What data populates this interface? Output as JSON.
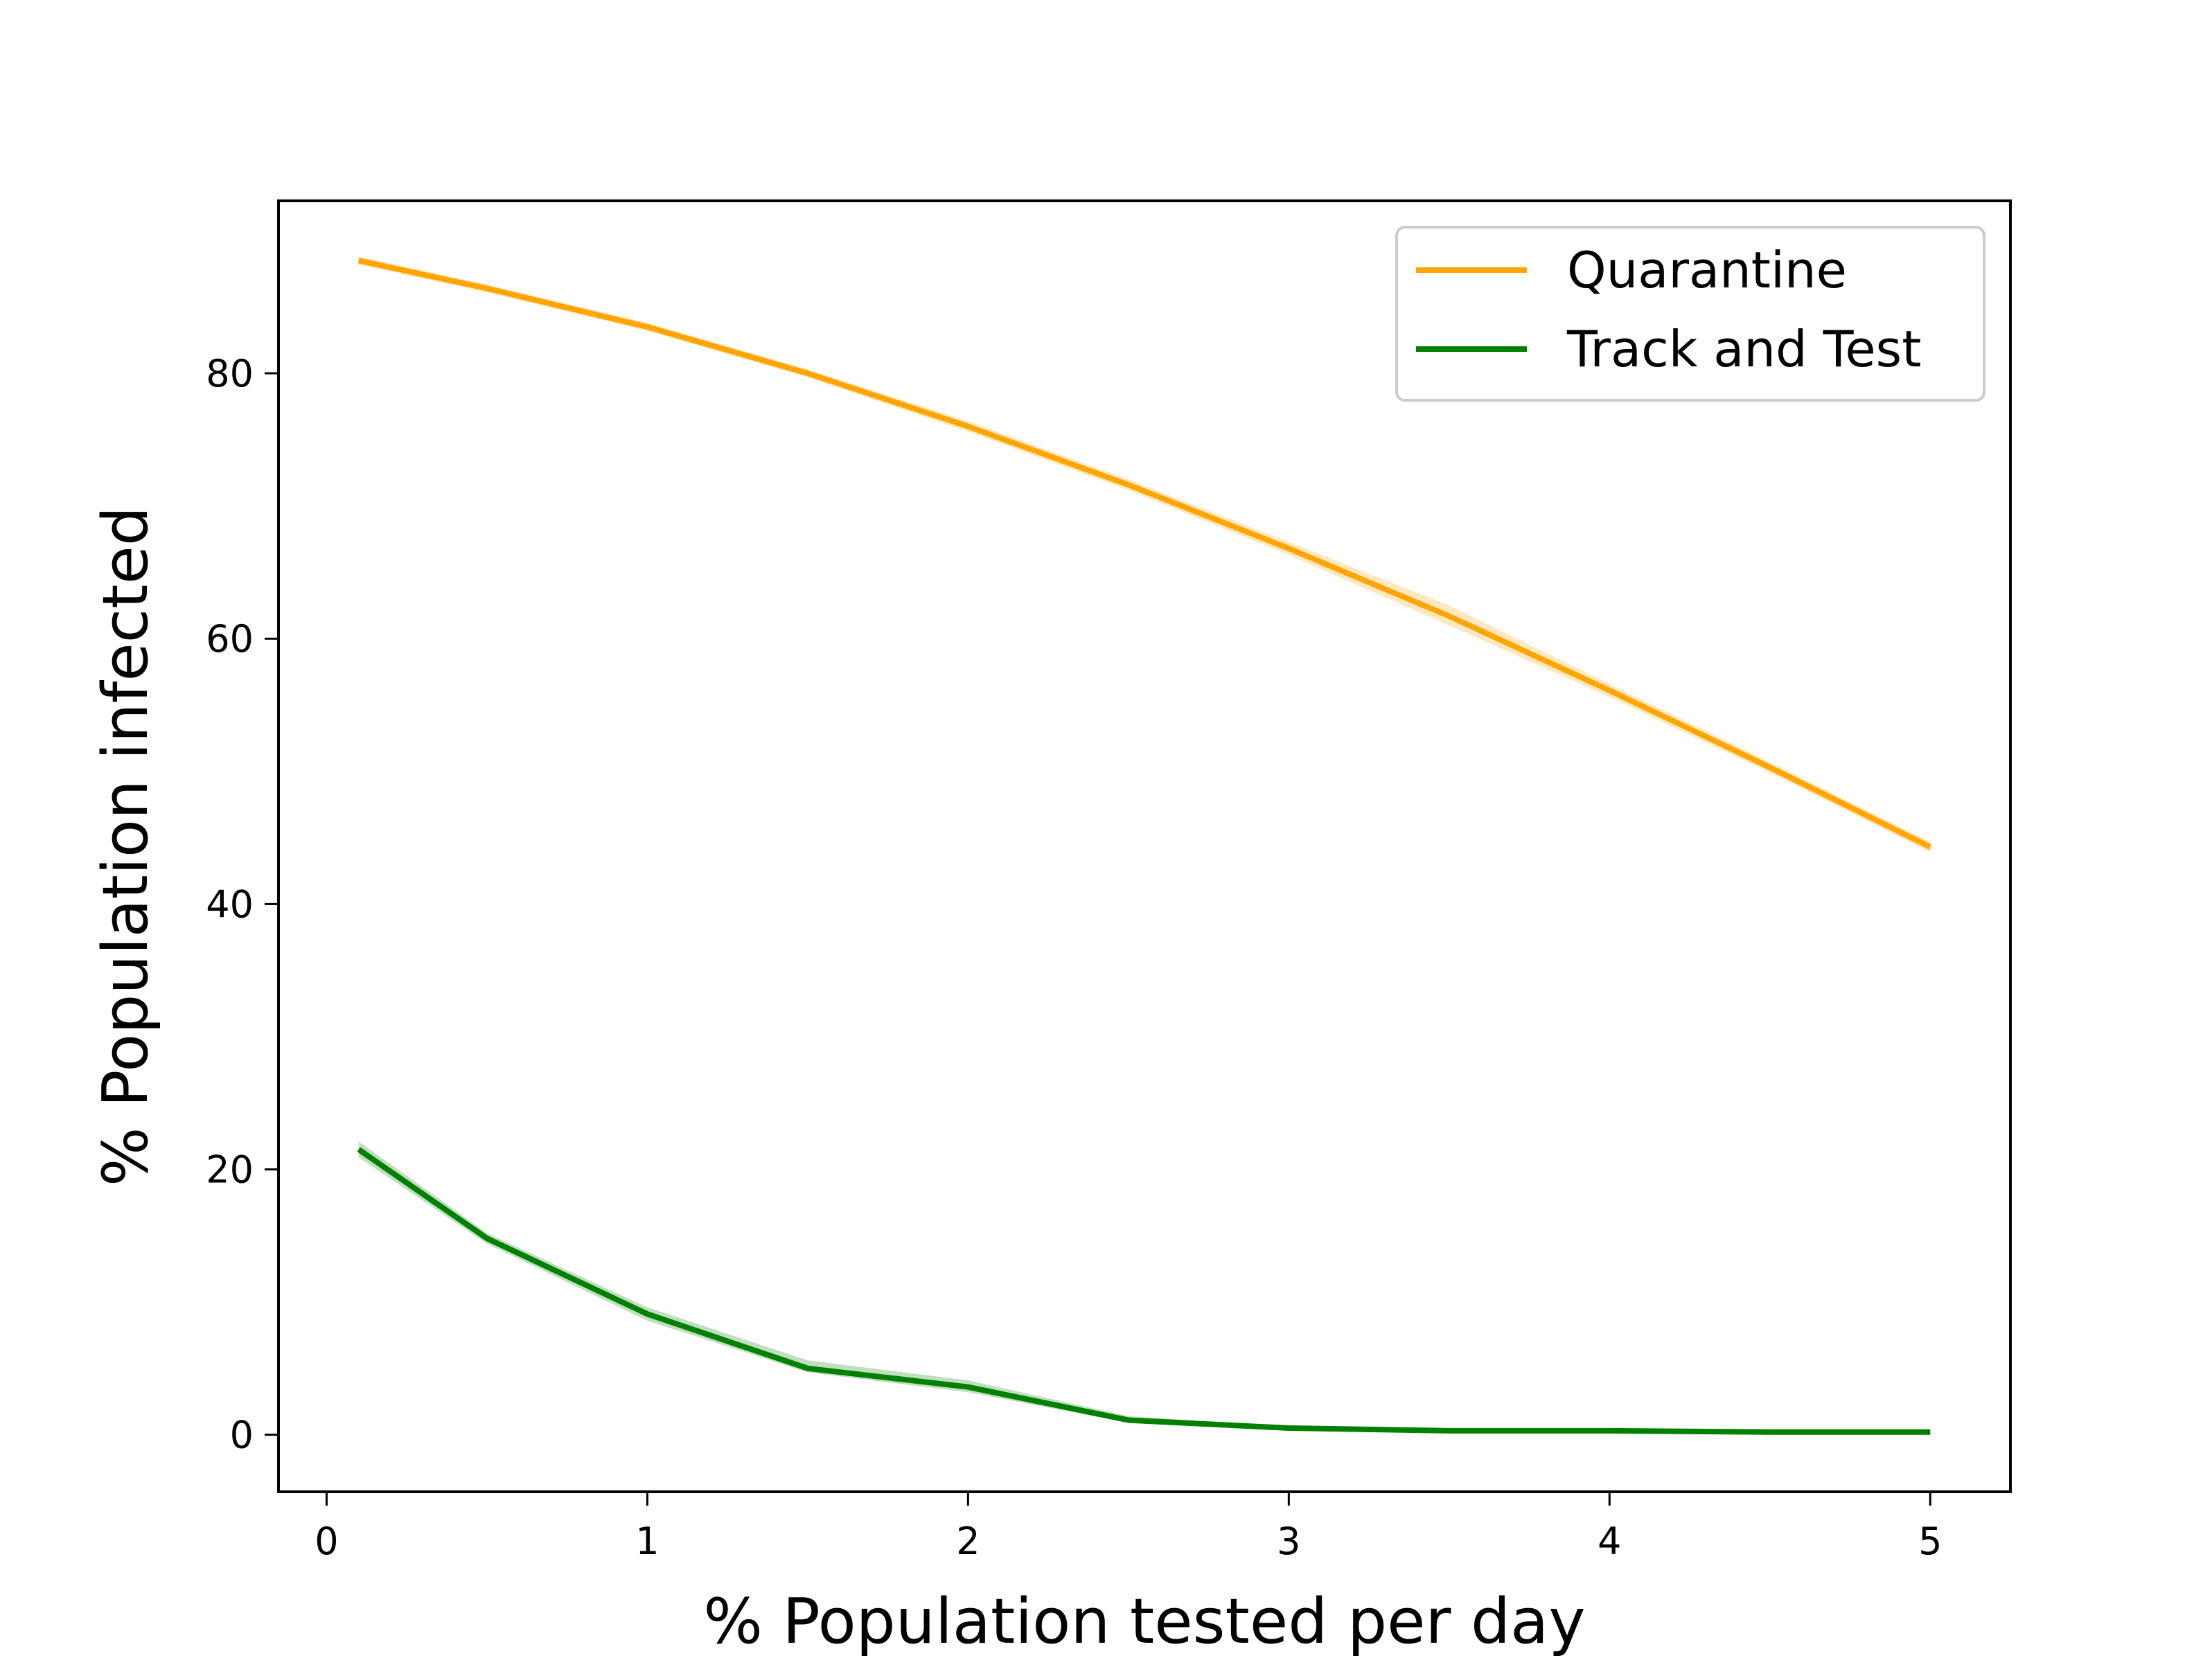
{
  "chart_data": {
    "type": "line",
    "title": "",
    "xlabel": "% Population tested per day",
    "ylabel": "% Population infected",
    "xlim": [
      -0.15,
      5.25
    ],
    "ylim": [
      -4.3,
      93
    ],
    "xticks": [
      0,
      1,
      2,
      3,
      4,
      5
    ],
    "yticks": [
      0,
      20,
      40,
      60,
      80
    ],
    "grid": false,
    "legend_position": "top-right",
    "series": [
      {
        "name": "Quarantine",
        "color": "#ffa500",
        "x": [
          0.1,
          0.5,
          1,
          1.5,
          2,
          2.5,
          3,
          3.5,
          4,
          4.5,
          5
        ],
        "y": [
          88.5,
          86.4,
          83.5,
          80.0,
          76.0,
          71.6,
          66.8,
          61.7,
          56.1,
          50.3,
          44.3
        ],
        "y_lower": [
          88.2,
          86.1,
          83.2,
          79.7,
          75.6,
          71.2,
          66.3,
          61.0,
          55.6,
          49.9,
          43.9
        ],
        "y_upper": [
          88.8,
          86.7,
          83.8,
          80.3,
          76.4,
          72.0,
          67.3,
          62.5,
          56.6,
          50.7,
          44.7
        ]
      },
      {
        "name": "Track and Test",
        "color": "#008000",
        "x": [
          0.1,
          0.5,
          1,
          1.5,
          2,
          2.5,
          3,
          3.5,
          4,
          4.5,
          5
        ],
        "y": [
          21.5,
          14.8,
          9.1,
          5.0,
          3.6,
          1.1,
          0.5,
          0.3,
          0.3,
          0.2,
          0.2
        ],
        "y_lower": [
          20.9,
          14.4,
          8.6,
          4.7,
          3.2,
          0.9,
          0.4,
          0.2,
          0.2,
          0.1,
          0.1
        ],
        "y_upper": [
          22.1,
          15.2,
          9.6,
          5.6,
          4.1,
          1.4,
          0.6,
          0.4,
          0.4,
          0.3,
          0.3
        ]
      }
    ]
  }
}
